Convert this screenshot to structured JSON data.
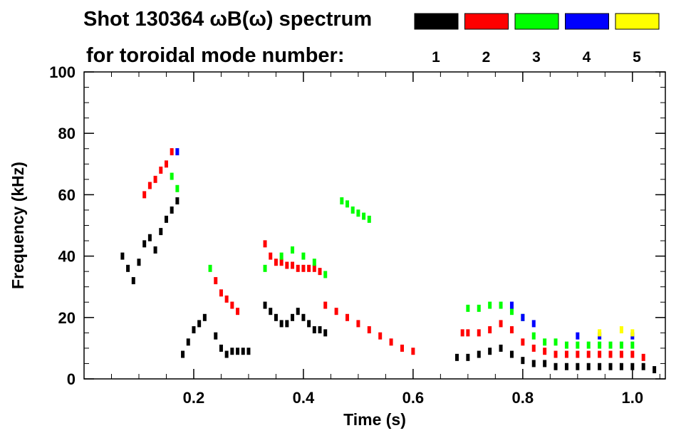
{
  "chart_data": {
    "type": "scatter",
    "title": "Shot 130364 ωB(ω) spectrum",
    "subtitle": "for toroidal mode number:",
    "xlabel": "Time (s)",
    "ylabel": "Frequency (kHz)",
    "xlim": [
      0.0,
      1.06
    ],
    "ylim": [
      0,
      100
    ],
    "xticks": [
      "0.2",
      "0.4",
      "0.6",
      "0.8",
      "1.0"
    ],
    "xtick_values": [
      0.2,
      0.4,
      0.6,
      0.8,
      1.0
    ],
    "yticks": [
      "0",
      "20",
      "40",
      "60",
      "80",
      "100"
    ],
    "ytick_values": [
      0,
      20,
      40,
      60,
      80,
      100
    ],
    "grid": false,
    "legend_placement": "top-right",
    "legend": [
      {
        "label": "1",
        "color": "#000000"
      },
      {
        "label": "2",
        "color": "#ff0000"
      },
      {
        "label": "3",
        "color": "#00ff00"
      },
      {
        "label": "4",
        "color": "#0000ff"
      },
      {
        "label": "5",
        "color": "#ffff00"
      }
    ],
    "series": [
      {
        "name": "1",
        "color": "#000000",
        "points": [
          [
            0.07,
            40
          ],
          [
            0.08,
            36
          ],
          [
            0.09,
            32
          ],
          [
            0.1,
            38
          ],
          [
            0.11,
            44
          ],
          [
            0.12,
            46
          ],
          [
            0.13,
            42
          ],
          [
            0.14,
            48
          ],
          [
            0.15,
            52
          ],
          [
            0.16,
            55
          ],
          [
            0.17,
            58
          ],
          [
            0.18,
            8
          ],
          [
            0.19,
            12
          ],
          [
            0.2,
            16
          ],
          [
            0.21,
            18
          ],
          [
            0.22,
            20
          ],
          [
            0.24,
            14
          ],
          [
            0.25,
            10
          ],
          [
            0.26,
            8
          ],
          [
            0.27,
            9
          ],
          [
            0.28,
            9
          ],
          [
            0.29,
            9
          ],
          [
            0.3,
            9
          ],
          [
            0.33,
            24
          ],
          [
            0.34,
            22
          ],
          [
            0.35,
            20
          ],
          [
            0.36,
            18
          ],
          [
            0.37,
            18
          ],
          [
            0.38,
            20
          ],
          [
            0.39,
            22
          ],
          [
            0.4,
            20
          ],
          [
            0.41,
            18
          ],
          [
            0.42,
            16
          ],
          [
            0.43,
            16
          ],
          [
            0.44,
            15
          ],
          [
            0.68,
            7
          ],
          [
            0.7,
            7
          ],
          [
            0.72,
            8
          ],
          [
            0.74,
            9
          ],
          [
            0.76,
            10
          ],
          [
            0.78,
            8
          ],
          [
            0.8,
            6
          ],
          [
            0.82,
            5
          ],
          [
            0.84,
            5
          ],
          [
            0.86,
            4
          ],
          [
            0.88,
            4
          ],
          [
            0.9,
            4
          ],
          [
            0.92,
            4
          ],
          [
            0.94,
            4
          ],
          [
            0.96,
            4
          ],
          [
            0.98,
            4
          ],
          [
            1.0,
            4
          ],
          [
            1.02,
            4
          ],
          [
            1.04,
            3
          ]
        ]
      },
      {
        "name": "2",
        "color": "#ff0000",
        "points": [
          [
            0.11,
            60
          ],
          [
            0.12,
            63
          ],
          [
            0.13,
            65
          ],
          [
            0.14,
            68
          ],
          [
            0.15,
            70
          ],
          [
            0.16,
            74
          ],
          [
            0.24,
            32
          ],
          [
            0.25,
            28
          ],
          [
            0.26,
            26
          ],
          [
            0.27,
            24
          ],
          [
            0.28,
            22
          ],
          [
            0.33,
            44
          ],
          [
            0.34,
            40
          ],
          [
            0.35,
            38
          ],
          [
            0.36,
            38
          ],
          [
            0.37,
            37
          ],
          [
            0.38,
            37
          ],
          [
            0.39,
            36
          ],
          [
            0.4,
            36
          ],
          [
            0.41,
            36
          ],
          [
            0.42,
            36
          ],
          [
            0.43,
            35
          ],
          [
            0.44,
            24
          ],
          [
            0.46,
            22
          ],
          [
            0.48,
            20
          ],
          [
            0.5,
            18
          ],
          [
            0.52,
            16
          ],
          [
            0.54,
            14
          ],
          [
            0.56,
            12
          ],
          [
            0.58,
            10
          ],
          [
            0.6,
            9
          ],
          [
            0.69,
            15
          ],
          [
            0.7,
            15
          ],
          [
            0.72,
            15
          ],
          [
            0.74,
            16
          ],
          [
            0.76,
            18
          ],
          [
            0.78,
            16
          ],
          [
            0.8,
            12
          ],
          [
            0.82,
            10
          ],
          [
            0.84,
            9
          ],
          [
            0.86,
            8
          ],
          [
            0.88,
            8
          ],
          [
            0.9,
            8
          ],
          [
            0.92,
            8
          ],
          [
            0.94,
            8
          ],
          [
            0.96,
            8
          ],
          [
            0.98,
            8
          ],
          [
            1.0,
            8
          ],
          [
            1.02,
            7
          ]
        ]
      },
      {
        "name": "3",
        "color": "#00ff00",
        "points": [
          [
            0.16,
            66
          ],
          [
            0.17,
            62
          ],
          [
            0.23,
            36
          ],
          [
            0.33,
            36
          ],
          [
            0.36,
            40
          ],
          [
            0.38,
            42
          ],
          [
            0.4,
            40
          ],
          [
            0.42,
            38
          ],
          [
            0.44,
            34
          ],
          [
            0.47,
            58
          ],
          [
            0.48,
            57
          ],
          [
            0.49,
            55
          ],
          [
            0.5,
            54
          ],
          [
            0.51,
            53
          ],
          [
            0.52,
            52
          ],
          [
            0.7,
            23
          ],
          [
            0.72,
            23
          ],
          [
            0.74,
            24
          ],
          [
            0.76,
            24
          ],
          [
            0.78,
            22
          ],
          [
            0.8,
            20
          ],
          [
            0.82,
            14
          ],
          [
            0.84,
            12
          ],
          [
            0.86,
            12
          ],
          [
            0.88,
            11
          ],
          [
            0.9,
            11
          ],
          [
            0.92,
            11
          ],
          [
            0.94,
            11
          ],
          [
            0.96,
            11
          ],
          [
            0.98,
            11
          ],
          [
            1.0,
            11
          ]
        ]
      },
      {
        "name": "4",
        "color": "#0000ff",
        "points": [
          [
            0.17,
            74
          ],
          [
            0.78,
            24
          ],
          [
            0.8,
            20
          ],
          [
            0.82,
            18
          ],
          [
            0.9,
            14
          ],
          [
            0.94,
            14
          ],
          [
            1.0,
            14
          ]
        ]
      },
      {
        "name": "5",
        "color": "#ffff00",
        "points": [
          [
            0.94,
            15
          ],
          [
            0.98,
            16
          ],
          [
            1.0,
            15
          ]
        ]
      }
    ]
  }
}
